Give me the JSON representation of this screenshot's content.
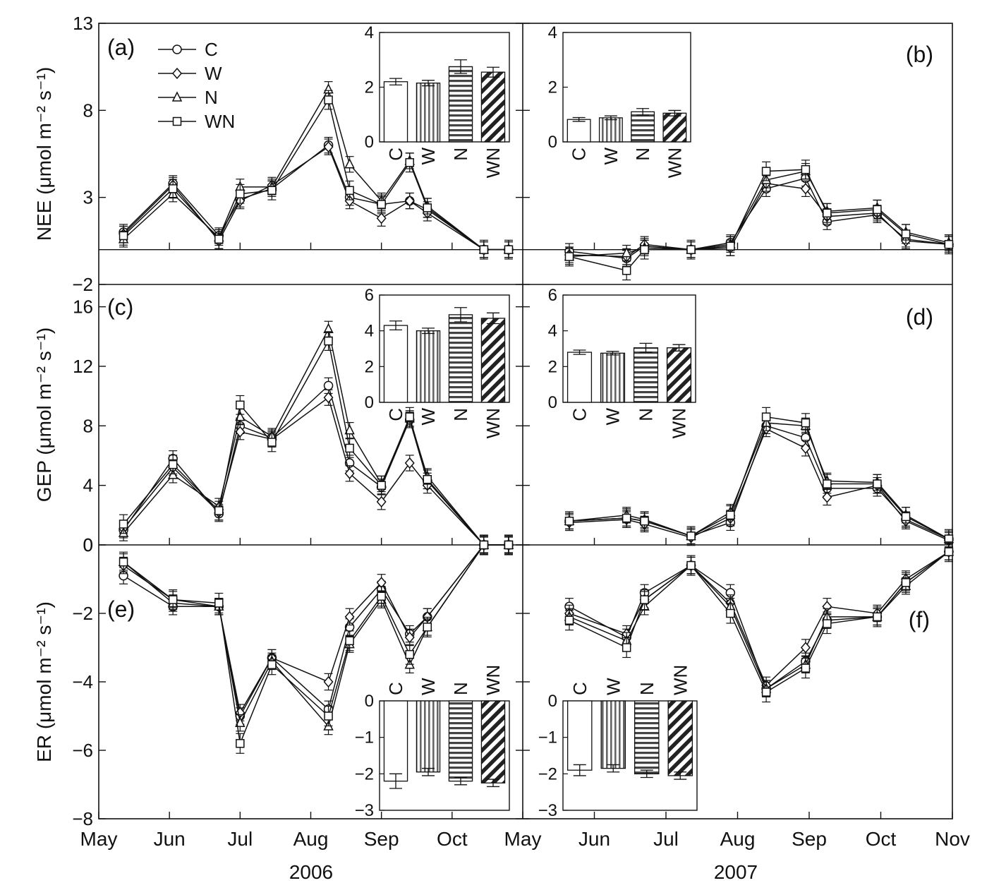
{
  "figure": {
    "years": [
      "2006",
      "2007"
    ],
    "month_labels_2006": [
      "May",
      "Jun",
      "Jul",
      "Aug",
      "Sep",
      "Oct",
      "May"
    ],
    "month_labels_2007": [
      "Jun",
      "Jul",
      "Aug",
      "Sep",
      "Oct",
      "Nov"
    ],
    "legend": [
      {
        "label": "C",
        "marker": "circle"
      },
      {
        "label": "W",
        "marker": "diamond"
      },
      {
        "label": "N",
        "marker": "triangle"
      },
      {
        "label": "WN",
        "marker": "square"
      }
    ]
  },
  "chart_data": [
    {
      "type": "line",
      "panel_label": "(a)",
      "ylabel": "NEE (μmol m⁻² s⁻¹)",
      "ylim": [
        -2,
        13
      ],
      "yticks": [
        -2,
        3,
        8,
        13
      ],
      "x": [
        0.35,
        1.05,
        1.7,
        2.0,
        2.45,
        3.25,
        3.55,
        4.0,
        4.4,
        4.65,
        5.45,
        5.8
      ],
      "series": [
        {
          "name": "C",
          "values": [
            1.0,
            3.8,
            0.8,
            2.9,
            3.5,
            6.0,
            3.0,
            2.6,
            2.8,
            2.3,
            0.0,
            0.0
          ]
        },
        {
          "name": "W",
          "values": [
            0.9,
            3.7,
            0.5,
            2.8,
            3.7,
            5.9,
            2.8,
            1.8,
            2.8,
            2.1,
            0.0,
            0.0
          ]
        },
        {
          "name": "N",
          "values": [
            0.6,
            3.2,
            0.7,
            3.6,
            3.6,
            9.2,
            4.9,
            2.8,
            5.1,
            2.5,
            0.0,
            0.0
          ]
        },
        {
          "name": "WN",
          "values": [
            0.8,
            3.5,
            0.6,
            3.2,
            3.4,
            8.6,
            3.4,
            2.6,
            5.0,
            2.4,
            0.0,
            0.0
          ]
        }
      ],
      "inset": {
        "categories": [
          "C",
          "W",
          "N",
          "WN"
        ],
        "values": [
          2.2,
          2.15,
          2.75,
          2.55
        ],
        "errors": [
          0.12,
          0.1,
          0.25,
          0.18
        ],
        "ylim": [
          0,
          4
        ],
        "yticks": [
          0,
          2,
          4
        ]
      }
    },
    {
      "type": "line",
      "panel_label": "(b)",
      "ylabel": "",
      "ylim": [
        -2,
        13
      ],
      "yticks": [
        -2,
        3,
        8,
        13
      ],
      "x": [
        0.65,
        1.45,
        1.7,
        2.35,
        2.9,
        3.4,
        3.95,
        4.25,
        4.95,
        5.35,
        5.95
      ],
      "series": [
        {
          "name": "C",
          "values": [
            -0.1,
            -0.5,
            0.2,
            0.0,
            0.4,
            3.5,
            4.1,
            1.6,
            2.0,
            0.6,
            0.3
          ]
        },
        {
          "name": "W",
          "values": [
            -0.3,
            -0.4,
            0.3,
            0.0,
            0.1,
            3.8,
            3.5,
            1.9,
            2.1,
            0.5,
            0.3
          ]
        },
        {
          "name": "N",
          "values": [
            -0.4,
            -0.2,
            0.1,
            0.0,
            0.3,
            4.0,
            4.5,
            2.2,
            2.4,
            1.0,
            0.4
          ]
        },
        {
          "name": "WN",
          "values": [
            -0.4,
            -1.2,
            0.0,
            0.0,
            0.2,
            4.5,
            4.6,
            2.1,
            2.3,
            0.9,
            0.3
          ]
        }
      ],
      "inset": {
        "categories": [
          "C",
          "W",
          "N",
          "WN"
        ],
        "values": [
          0.82,
          0.88,
          1.1,
          1.05
        ],
        "errors": [
          0.07,
          0.07,
          0.12,
          0.1
        ],
        "ylim": [
          0,
          4
        ],
        "yticks": [
          0,
          2,
          4
        ]
      }
    },
    {
      "type": "line",
      "panel_label": "(c)",
      "ylabel": "GEP (μmol m⁻² s⁻¹)",
      "ylim": [
        0,
        17.5
      ],
      "yticks": [
        0,
        4,
        8,
        12,
        16
      ],
      "x": [
        0.35,
        1.05,
        1.7,
        2.0,
        2.45,
        3.25,
        3.55,
        4.0,
        4.4,
        4.65,
        5.45,
        5.8
      ],
      "series": [
        {
          "name": "C",
          "values": [
            1.0,
            5.8,
            2.1,
            8.0,
            7.2,
            10.7,
            5.5,
            3.9,
            8.4,
            4.3,
            0.0,
            0.0
          ]
        },
        {
          "name": "W",
          "values": [
            1.1,
            5.2,
            2.2,
            7.6,
            7.1,
            9.9,
            4.8,
            2.9,
            5.5,
            4.0,
            0.0,
            0.0
          ]
        },
        {
          "name": "N",
          "values": [
            0.8,
            4.7,
            2.6,
            8.6,
            7.3,
            14.5,
            7.7,
            4.1,
            8.5,
            4.6,
            0.0,
            0.0
          ]
        },
        {
          "name": "WN",
          "values": [
            1.4,
            5.4,
            2.3,
            9.4,
            6.9,
            13.7,
            6.5,
            4.0,
            8.6,
            4.4,
            0.0,
            0.0
          ]
        }
      ],
      "inset": {
        "categories": [
          "C",
          "W",
          "N",
          "WN"
        ],
        "values": [
          4.3,
          4.0,
          4.9,
          4.7
        ],
        "errors": [
          0.25,
          0.15,
          0.4,
          0.3
        ],
        "ylim": [
          0,
          6
        ],
        "yticks": [
          0,
          2,
          4,
          6
        ]
      }
    },
    {
      "type": "line",
      "panel_label": "(d)",
      "ylabel": "",
      "ylim": [
        0,
        17.5
      ],
      "yticks": [
        0,
        4,
        8,
        12,
        16
      ],
      "x": [
        0.65,
        1.45,
        1.7,
        2.35,
        2.9,
        3.4,
        3.95,
        4.25,
        4.95,
        5.35,
        5.95
      ],
      "series": [
        {
          "name": "C",
          "values": [
            1.6,
            1.8,
            1.6,
            0.6,
            1.5,
            8.0,
            7.2,
            3.8,
            3.8,
            1.7,
            0.4
          ]
        },
        {
          "name": "W",
          "values": [
            1.5,
            1.7,
            1.4,
            0.5,
            1.8,
            7.8,
            6.5,
            3.2,
            4.0,
            1.6,
            0.3
          ]
        },
        {
          "name": "N",
          "values": [
            1.6,
            2.0,
            1.7,
            0.6,
            2.2,
            8.2,
            8.0,
            4.3,
            4.2,
            2.0,
            0.4
          ]
        },
        {
          "name": "WN",
          "values": [
            1.6,
            1.8,
            1.6,
            0.6,
            2.0,
            8.6,
            8.2,
            4.1,
            4.1,
            1.9,
            0.4
          ]
        }
      ],
      "inset": {
        "categories": [
          "C",
          "W",
          "N",
          "WN"
        ],
        "values": [
          2.8,
          2.75,
          3.05,
          3.05
        ],
        "errors": [
          0.12,
          0.1,
          0.25,
          0.18
        ],
        "ylim": [
          0,
          6
        ],
        "yticks": [
          0,
          2,
          4,
          6
        ]
      }
    },
    {
      "type": "line",
      "panel_label": "(e)",
      "ylabel": "ER (μmol m⁻² s⁻¹)",
      "ylim": [
        -8,
        0
      ],
      "yticks": [
        -8,
        -6,
        -4,
        -2,
        0
      ],
      "x": [
        0.35,
        1.05,
        1.7,
        2.0,
        2.45,
        3.25,
        3.55,
        4.0,
        4.4,
        4.65,
        5.45,
        5.8
      ],
      "series": [
        {
          "name": "C",
          "values": [
            -0.9,
            -1.8,
            -1.8,
            -5.0,
            -3.3,
            -4.8,
            -2.4,
            -1.3,
            -2.6,
            -2.1,
            0.0,
            0.0
          ]
        },
        {
          "name": "W",
          "values": [
            -0.6,
            -1.6,
            -1.8,
            -4.9,
            -3.3,
            -4.0,
            -2.1,
            -1.1,
            -2.7,
            -2.1,
            0.0,
            0.0
          ]
        },
        {
          "name": "N",
          "values": [
            -0.5,
            -1.7,
            -1.8,
            -5.2,
            -3.4,
            -5.3,
            -2.9,
            -1.6,
            -3.5,
            -2.4,
            0.0,
            0.0
          ]
        },
        {
          "name": "WN",
          "values": [
            -0.5,
            -1.6,
            -1.7,
            -5.8,
            -3.5,
            -5.0,
            -2.8,
            -1.5,
            -3.2,
            -2.4,
            0.0,
            0.0
          ]
        }
      ],
      "inset": {
        "categories": [
          "C",
          "W",
          "N",
          "WN"
        ],
        "values": [
          -2.2,
          -1.95,
          -2.2,
          -2.25
        ],
        "errors": [
          0.2,
          0.1,
          0.1,
          0.1
        ],
        "ylim": [
          -3,
          0
        ],
        "yticks": [
          -3,
          -2,
          -1,
          0
        ]
      }
    },
    {
      "type": "line",
      "panel_label": "(f)",
      "ylabel": "",
      "ylim": [
        -8,
        0
      ],
      "yticks": [
        -8,
        -6,
        -4,
        -2,
        0
      ],
      "x": [
        0.65,
        1.45,
        1.7,
        2.35,
        2.9,
        3.4,
        3.95,
        4.25,
        4.95,
        5.35,
        5.95
      ],
      "series": [
        {
          "name": "C",
          "values": [
            -1.8,
            -2.7,
            -1.4,
            -0.6,
            -1.4,
            -4.2,
            -3.4,
            -2.2,
            -2.1,
            -1.1,
            -0.2
          ]
        },
        {
          "name": "W",
          "values": [
            -2.0,
            -2.6,
            -1.6,
            -0.6,
            -1.7,
            -4.1,
            -3.0,
            -1.8,
            -2.0,
            -1.0,
            -0.2
          ]
        },
        {
          "name": "N",
          "values": [
            -2.1,
            -2.8,
            -1.8,
            -0.6,
            -1.8,
            -4.2,
            -3.5,
            -2.1,
            -2.1,
            -1.2,
            -0.2
          ]
        },
        {
          "name": "WN",
          "values": [
            -2.2,
            -3.0,
            -1.6,
            -0.6,
            -2.0,
            -4.3,
            -3.6,
            -2.3,
            -2.1,
            -1.1,
            -0.2
          ]
        }
      ],
      "inset": {
        "categories": [
          "C",
          "W",
          "N",
          "WN"
        ],
        "values": [
          -1.9,
          -1.85,
          -2.0,
          -2.05
        ],
        "errors": [
          0.15,
          0.1,
          0.1,
          0.1
        ],
        "ylim": [
          -3,
          0
        ],
        "yticks": [
          -3,
          -2,
          -1,
          0
        ]
      }
    }
  ]
}
